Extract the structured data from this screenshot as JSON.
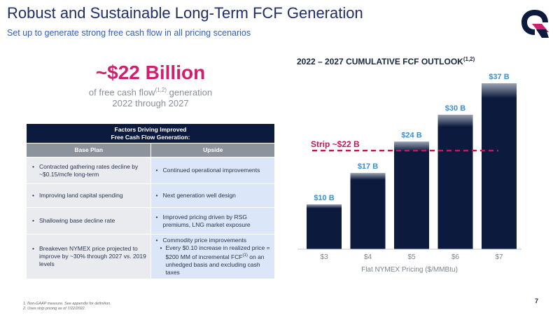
{
  "header": {
    "title": "Robust and Sustainable Long-Term FCF Generation",
    "subtitle": "Set up to generate strong free cash flow in all pricing scenarios"
  },
  "highlight": {
    "value": "~$22 Billion",
    "line1_pre": "of free cash flow",
    "line1_sup": "(1,2)",
    "line1_post": " generation",
    "line2": "2022 through 2027"
  },
  "table": {
    "title_line1": "Factors Driving Improved",
    "title_line2": "Free Cash Flow Generation:",
    "col_base": "Base Plan",
    "col_upside": "Upside",
    "rows": [
      {
        "base": "Contracted gathering rates decline by ~$0.15/mcfe long-term",
        "upside": "Continued operational improvements"
      },
      {
        "base": "Improving land capital spending",
        "upside": "Next generation well design"
      },
      {
        "base": "Shallowing base decline rate",
        "upside": "Improved pricing driven by RSG premiums, LNG market exposure"
      },
      {
        "base": "Breakeven NYMEX price projected to improve by ~30% through 2027 vs. 2019 levels",
        "upside": "Commodity price improvements"
      }
    ],
    "sub_bullet_pre": "Every $0.10 increase in realized price = $200 MM of incremental FCF",
    "sub_bullet_sup": "(1)",
    "sub_bullet_post": " on an unhedged basis and excluding cash taxes"
  },
  "chart_data": {
    "type": "bar",
    "title": "2022 – 2027 CUMULATIVE FCF OUTLOOK",
    "title_sup": "(1,2)",
    "categories": [
      "$3",
      "$4",
      "$5",
      "$6",
      "$7"
    ],
    "values": [
      10,
      17,
      24,
      30,
      37
    ],
    "data_labels": [
      "$10 B",
      "$17 B",
      "$24 B",
      "$30 B",
      "$37 B"
    ],
    "xlabel": "Flat NYMEX Pricing ($/MMBtu)",
    "ylabel": "",
    "ylim": [
      0,
      37
    ],
    "grid": false,
    "reference_line": {
      "value": 22,
      "label": "Strip ~$22 B"
    },
    "bar_color": "#0c1a3e",
    "label_color": "#3a8fd6",
    "reference_color": "#c2185b"
  },
  "footnotes": [
    "1.   Non-GAAP measure. See appendix for definition.",
    "2.   Uses strip pricing as of 7/22/2022."
  ],
  "page_number": "7",
  "colors": {
    "navy": "#0c1a3e",
    "accent": "#d11e6e",
    "title": "#1f2d6b",
    "subtitle": "#2f5fbf"
  }
}
